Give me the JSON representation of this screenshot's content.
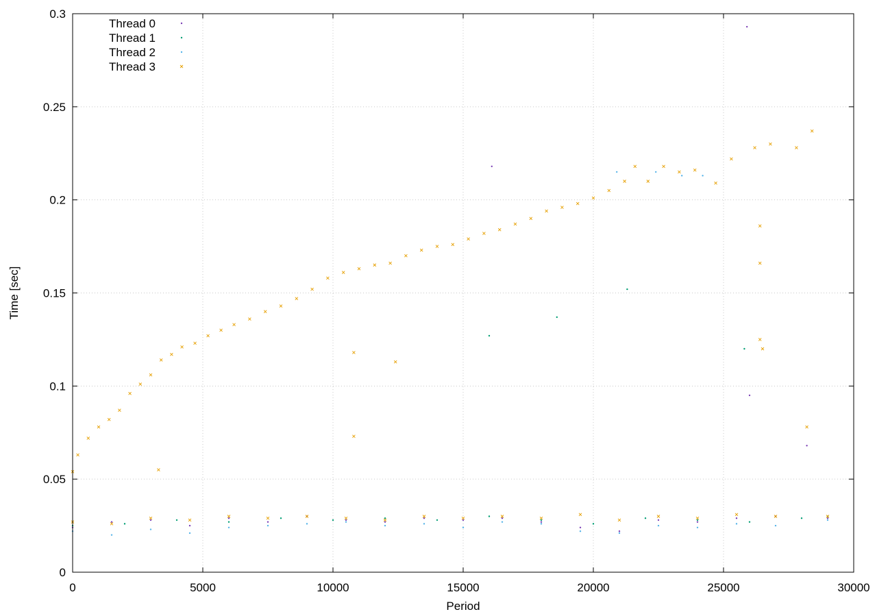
{
  "chart_data": {
    "type": "scatter",
    "title": "",
    "xlabel": "Period",
    "ylabel": "Time [sec]",
    "xlim": [
      0,
      30000
    ],
    "ylim": [
      0,
      0.3
    ],
    "x_ticks": [
      0,
      5000,
      10000,
      15000,
      20000,
      25000,
      30000
    ],
    "x_tick_labels": [
      "0",
      "5000",
      "10000",
      "15000",
      "20000",
      "25000",
      "30000"
    ],
    "y_ticks": [
      0,
      0.05,
      0.1,
      0.15,
      0.2,
      0.25,
      0.3
    ],
    "y_tick_labels": [
      "0",
      "0.05",
      "0.1",
      "0.15",
      "0.2",
      "0.25",
      "0.3"
    ],
    "grid": true,
    "legend_position": "top-left",
    "series": [
      {
        "name": "Thread 0",
        "color": "#7b3fb5",
        "marker": "dot",
        "points": [
          [
            0,
            0.024
          ],
          [
            1500,
            0.027
          ],
          [
            3000,
            0.028
          ],
          [
            4500,
            0.025
          ],
          [
            6000,
            0.029
          ],
          [
            7500,
            0.027
          ],
          [
            9000,
            0.03
          ],
          [
            10500,
            0.028
          ],
          [
            12000,
            0.027
          ],
          [
            13500,
            0.029
          ],
          [
            15000,
            0.028
          ],
          [
            16500,
            0.029
          ],
          [
            18000,
            0.027
          ],
          [
            19500,
            0.024
          ],
          [
            21000,
            0.022
          ],
          [
            22500,
            0.028
          ],
          [
            24000,
            0.027
          ],
          [
            25500,
            0.029
          ],
          [
            27000,
            0.03
          ],
          [
            29000,
            0.029
          ],
          [
            25900,
            0.293
          ],
          [
            28200,
            0.068
          ],
          [
            26000,
            0.095
          ],
          [
            16100,
            0.218
          ]
        ]
      },
      {
        "name": "Thread 1",
        "color": "#009e73",
        "marker": "dot",
        "points": [
          [
            0,
            0.025
          ],
          [
            2000,
            0.026
          ],
          [
            4000,
            0.028
          ],
          [
            6000,
            0.027
          ],
          [
            8000,
            0.029
          ],
          [
            10000,
            0.028
          ],
          [
            12000,
            0.029
          ],
          [
            14000,
            0.028
          ],
          [
            16000,
            0.03
          ],
          [
            18000,
            0.028
          ],
          [
            20000,
            0.026
          ],
          [
            22000,
            0.029
          ],
          [
            24000,
            0.028
          ],
          [
            26000,
            0.027
          ],
          [
            28000,
            0.029
          ],
          [
            29000,
            0.03
          ],
          [
            16000,
            0.127
          ],
          [
            18600,
            0.137
          ],
          [
            21300,
            0.152
          ],
          [
            25800,
            0.12
          ]
        ]
      },
      {
        "name": "Thread 2",
        "color": "#56b4e9",
        "marker": "dot",
        "points": [
          [
            0,
            0.022
          ],
          [
            1500,
            0.02
          ],
          [
            3000,
            0.023
          ],
          [
            4500,
            0.021
          ],
          [
            6000,
            0.024
          ],
          [
            7500,
            0.025
          ],
          [
            9000,
            0.026
          ],
          [
            10500,
            0.027
          ],
          [
            12000,
            0.025
          ],
          [
            13500,
            0.026
          ],
          [
            15000,
            0.024
          ],
          [
            16500,
            0.027
          ],
          [
            18000,
            0.026
          ],
          [
            19500,
            0.022
          ],
          [
            21000,
            0.021
          ],
          [
            22500,
            0.025
          ],
          [
            24000,
            0.024
          ],
          [
            25500,
            0.026
          ],
          [
            27000,
            0.025
          ],
          [
            29000,
            0.028
          ],
          [
            20900,
            0.215
          ],
          [
            22400,
            0.215
          ],
          [
            23400,
            0.213
          ],
          [
            24200,
            0.213
          ]
        ]
      },
      {
        "name": "Thread 3",
        "color": "#e69f00",
        "marker": "x",
        "points": [
          [
            0,
            0.027
          ],
          [
            1500,
            0.026
          ],
          [
            3000,
            0.029
          ],
          [
            4500,
            0.028
          ],
          [
            6000,
            0.03
          ],
          [
            7500,
            0.029
          ],
          [
            9000,
            0.03
          ],
          [
            10500,
            0.029
          ],
          [
            12000,
            0.028
          ],
          [
            13500,
            0.03
          ],
          [
            15000,
            0.029
          ],
          [
            16500,
            0.03
          ],
          [
            18000,
            0.029
          ],
          [
            19500,
            0.031
          ],
          [
            21000,
            0.028
          ],
          [
            22500,
            0.03
          ],
          [
            24000,
            0.029
          ],
          [
            25500,
            0.031
          ],
          [
            27000,
            0.03
          ],
          [
            29000,
            0.03
          ],
          [
            0,
            0.054
          ],
          [
            200,
            0.063
          ],
          [
            600,
            0.072
          ],
          [
            1000,
            0.078
          ],
          [
            1400,
            0.082
          ],
          [
            1800,
            0.087
          ],
          [
            2200,
            0.096
          ],
          [
            2600,
            0.101
          ],
          [
            3000,
            0.106
          ],
          [
            3400,
            0.114
          ],
          [
            3800,
            0.117
          ],
          [
            4200,
            0.121
          ],
          [
            4700,
            0.123
          ],
          [
            5200,
            0.127
          ],
          [
            5700,
            0.13
          ],
          [
            6200,
            0.133
          ],
          [
            6800,
            0.136
          ],
          [
            7400,
            0.14
          ],
          [
            8000,
            0.143
          ],
          [
            8600,
            0.147
          ],
          [
            9200,
            0.152
          ],
          [
            9800,
            0.158
          ],
          [
            10400,
            0.161
          ],
          [
            11000,
            0.163
          ],
          [
            11600,
            0.165
          ],
          [
            12200,
            0.166
          ],
          [
            12800,
            0.17
          ],
          [
            13400,
            0.173
          ],
          [
            14000,
            0.175
          ],
          [
            14600,
            0.176
          ],
          [
            15200,
            0.179
          ],
          [
            15800,
            0.182
          ],
          [
            16400,
            0.184
          ],
          [
            17000,
            0.187
          ],
          [
            17600,
            0.19
          ],
          [
            18200,
            0.194
          ],
          [
            18800,
            0.196
          ],
          [
            19400,
            0.198
          ],
          [
            20000,
            0.201
          ],
          [
            20600,
            0.205
          ],
          [
            21200,
            0.21
          ],
          [
            21600,
            0.218
          ],
          [
            22100,
            0.21
          ],
          [
            22700,
            0.218
          ],
          [
            23300,
            0.215
          ],
          [
            23900,
            0.216
          ],
          [
            24700,
            0.209
          ],
          [
            25300,
            0.222
          ],
          [
            26200,
            0.228
          ],
          [
            26800,
            0.23
          ],
          [
            27800,
            0.228
          ],
          [
            28400,
            0.237
          ],
          [
            26400,
            0.186
          ],
          [
            26400,
            0.166
          ],
          [
            26400,
            0.125
          ],
          [
            10800,
            0.118
          ],
          [
            10800,
            0.073
          ],
          [
            12400,
            0.113
          ],
          [
            28200,
            0.078
          ],
          [
            26500,
            0.12
          ],
          [
            3300,
            0.055
          ]
        ]
      }
    ]
  }
}
